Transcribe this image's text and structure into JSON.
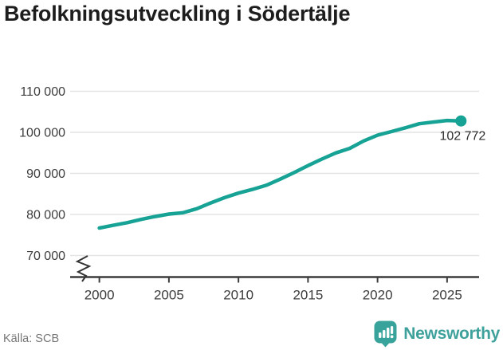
{
  "title": "Befolkningsutveckling i Södertälje",
  "footer": {
    "source": "Källa: SCB",
    "brand_name": "Newsworthy",
    "brand_icon": "bar-chart-exclamation-badge-icon"
  },
  "colors": {
    "line": "#16a294",
    "grid": "#e4e4e4",
    "axis": "#3c3c3c",
    "tick_text": "#3d3d3d",
    "title_text": "#1d1d1d",
    "muted_text": "#757575",
    "brand_teal": "#3fa19b",
    "badge_teal": "#38a39a"
  },
  "chart_data": {
    "type": "line",
    "title": "Befolkningsutveckling i Södertälje",
    "x": [
      2000,
      2001,
      2002,
      2003,
      2004,
      2005,
      2006,
      2007,
      2008,
      2009,
      2010,
      2011,
      2012,
      2013,
      2014,
      2015,
      2016,
      2017,
      2018,
      2019,
      2020,
      2021,
      2022,
      2023,
      2024,
      2025,
      2026
    ],
    "values": [
      76700,
      77350,
      78000,
      78800,
      79500,
      80100,
      80400,
      81400,
      82800,
      84100,
      85200,
      86100,
      87100,
      88600,
      90200,
      91900,
      93500,
      95000,
      96100,
      97900,
      99300,
      100200,
      101100,
      102100,
      102500,
      102900,
      102772
    ],
    "x_ticks": [
      {
        "value": 2000,
        "label": "2000"
      },
      {
        "value": 2005,
        "label": "2005"
      },
      {
        "value": 2010,
        "label": "2010"
      },
      {
        "value": 2015,
        "label": "2015"
      },
      {
        "value": 2020,
        "label": "2020"
      },
      {
        "value": 2025,
        "label": "2025"
      }
    ],
    "y_ticks": [
      {
        "value": 110000,
        "label": "110 000"
      },
      {
        "value": 100000,
        "label": "100 000"
      },
      {
        "value": 90000,
        "label": "90 000"
      },
      {
        "value": 80000,
        "label": "80 000"
      },
      {
        "value": 70000,
        "label": "70 000"
      }
    ],
    "ylim": [
      70000,
      110000
    ],
    "xlim": [
      1997.9,
      2027.3
    ],
    "grid": true,
    "legend": false,
    "axis_break": true,
    "end_point": {
      "x": 2026,
      "value": 102772,
      "label": "102 772"
    }
  }
}
